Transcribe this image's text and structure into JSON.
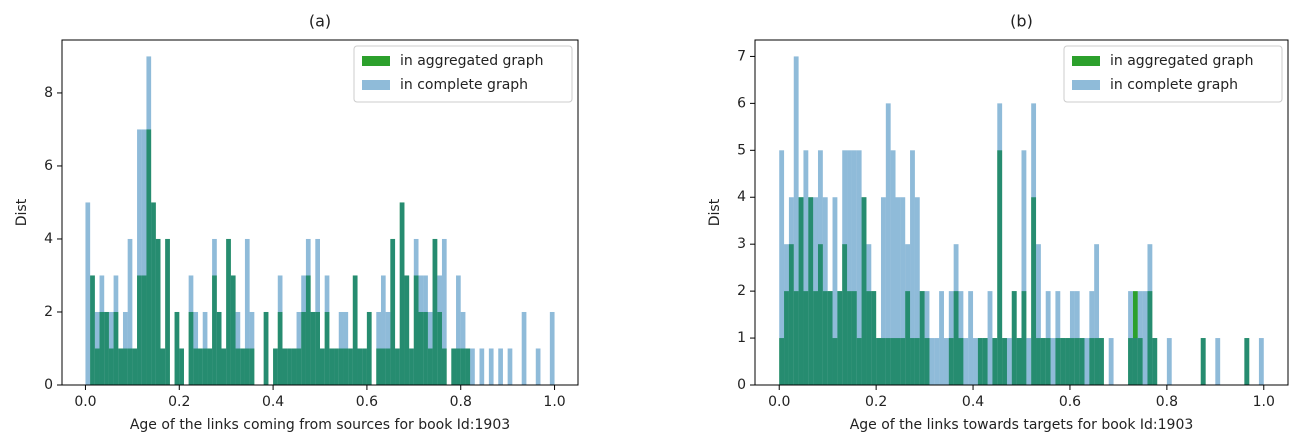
{
  "chart_data": [
    {
      "type": "histogram",
      "title": "(a)",
      "xlabel": "Age of the links coming from sources for book Id:1903",
      "ylabel": "Dist",
      "bins": [
        0,
        0.01,
        0.02,
        0.03,
        0.04,
        0.05,
        0.06,
        0.07,
        0.08,
        0.09,
        0.1,
        0.11,
        0.12,
        0.13,
        0.14,
        0.15,
        0.16,
        0.17,
        0.18,
        0.19,
        0.2,
        0.21,
        0.22,
        0.23,
        0.24,
        0.25,
        0.26,
        0.27,
        0.28,
        0.29,
        0.3,
        0.31,
        0.32,
        0.33,
        0.34,
        0.35,
        0.36,
        0.37,
        0.38,
        0.39,
        0.4,
        0.41,
        0.42,
        0.43,
        0.44,
        0.45,
        0.46,
        0.47,
        0.48,
        0.49,
        0.5,
        0.51,
        0.52,
        0.53,
        0.54,
        0.55,
        0.56,
        0.57,
        0.58,
        0.59,
        0.6,
        0.61,
        0.62,
        0.63,
        0.64,
        0.65,
        0.66,
        0.67,
        0.68,
        0.69,
        0.7,
        0.71,
        0.72,
        0.73,
        0.74,
        0.75,
        0.76,
        0.77,
        0.78,
        0.79,
        0.8,
        0.81,
        0.82,
        0.83,
        0.84,
        0.85,
        0.86,
        0.87,
        0.88,
        0.89,
        0.9,
        0.91,
        0.92,
        0.93,
        0.94,
        0.95,
        0.96,
        0.97,
        0.98,
        0.99,
        1
      ],
      "series": [
        {
          "name": "in aggregated graph",
          "color": "#2ca02c",
          "opacity": 1,
          "values": [
            0,
            3,
            1,
            2,
            2,
            1,
            2,
            1,
            1,
            1,
            1,
            3,
            3,
            7,
            5,
            4,
            1,
            4,
            0,
            2,
            1,
            0,
            2,
            1,
            1,
            1,
            1,
            3,
            2,
            1,
            4,
            3,
            1,
            1,
            1,
            1,
            0,
            0,
            2,
            0,
            1,
            2,
            1,
            1,
            1,
            1,
            2,
            3,
            2,
            2,
            1,
            2,
            1,
            1,
            1,
            1,
            1,
            3,
            1,
            1,
            2,
            0,
            1,
            1,
            1,
            4,
            1,
            5,
            3,
            1,
            3,
            2,
            2,
            1,
            4,
            2,
            1,
            0,
            1,
            1,
            1,
            1,
            0,
            0,
            0,
            0,
            0,
            0,
            0,
            0,
            0,
            0,
            0,
            0,
            0,
            0,
            0,
            0,
            0,
            0
          ]
        },
        {
          "name": "in complete graph",
          "color": "#1f77b4",
          "opacity": 0.5,
          "values": [
            5,
            3,
            2,
            3,
            2,
            2,
            3,
            1,
            2,
            4,
            1,
            7,
            7,
            9,
            5,
            4,
            1,
            4,
            0,
            2,
            1,
            0,
            3,
            2,
            1,
            2,
            1,
            4,
            2,
            1,
            4,
            3,
            2,
            1,
            4,
            2,
            0,
            0,
            2,
            0,
            1,
            3,
            1,
            1,
            1,
            2,
            3,
            4,
            2,
            4,
            1,
            3,
            1,
            1,
            2,
            2,
            1,
            3,
            1,
            1,
            2,
            0,
            2,
            3,
            2,
            4,
            1,
            5,
            3,
            1,
            4,
            3,
            3,
            2,
            4,
            3,
            4,
            0,
            1,
            3,
            2,
            1,
            1,
            0,
            1,
            0,
            1,
            0,
            1,
            0,
            1,
            0,
            0,
            2,
            0,
            0,
            1,
            0,
            0,
            2
          ]
        }
      ],
      "xlim": [
        -0.05,
        1.05
      ],
      "ylim": [
        0,
        9.45
      ],
      "xticks": [
        {
          "value": 0,
          "label": "0.0"
        },
        0.2,
        0.4,
        0.6,
        0.8,
        {
          "value": 1,
          "label": "1.0"
        }
      ],
      "yticks": [
        0,
        2,
        4,
        6,
        8
      ],
      "legend": "upper right"
    },
    {
      "type": "histogram",
      "title": "(b)",
      "xlabel": "Age of the links towards targets for book Id:1903",
      "ylabel": "Dist",
      "bins": [
        0,
        0.01,
        0.02,
        0.03,
        0.04,
        0.05,
        0.06,
        0.07,
        0.08,
        0.09,
        0.1,
        0.11,
        0.12,
        0.13,
        0.14,
        0.15,
        0.16,
        0.17,
        0.18,
        0.19,
        0.2,
        0.21,
        0.22,
        0.23,
        0.24,
        0.25,
        0.26,
        0.27,
        0.28,
        0.29,
        0.3,
        0.31,
        0.32,
        0.33,
        0.34,
        0.35,
        0.36,
        0.37,
        0.38,
        0.39,
        0.4,
        0.41,
        0.42,
        0.43,
        0.44,
        0.45,
        0.46,
        0.47,
        0.48,
        0.49,
        0.5,
        0.51,
        0.52,
        0.53,
        0.54,
        0.55,
        0.56,
        0.57,
        0.58,
        0.59,
        0.6,
        0.61,
        0.62,
        0.63,
        0.64,
        0.65,
        0.66,
        0.67,
        0.68,
        0.69,
        0.7,
        0.71,
        0.72,
        0.73,
        0.74,
        0.75,
        0.76,
        0.77,
        0.78,
        0.79,
        0.8,
        0.81,
        0.82,
        0.83,
        0.84,
        0.85,
        0.86,
        0.87,
        0.88,
        0.89,
        0.9,
        0.91,
        0.92,
        0.93,
        0.94,
        0.95,
        0.96,
        0.97,
        0.98,
        0.99,
        1
      ],
      "series": [
        {
          "name": "in aggregated graph",
          "color": "#2ca02c",
          "opacity": 1,
          "values": [
            1,
            2,
            3,
            2,
            4,
            2,
            4,
            2,
            3,
            2,
            2,
            1,
            2,
            3,
            2,
            2,
            1,
            4,
            2,
            2,
            1,
            1,
            1,
            1,
            1,
            1,
            2,
            1,
            1,
            2,
            1,
            0,
            0,
            0,
            0,
            1,
            2,
            1,
            0,
            0,
            0,
            1,
            1,
            0,
            1,
            5,
            1,
            0,
            2,
            1,
            2,
            0,
            4,
            1,
            1,
            1,
            0,
            1,
            1,
            1,
            1,
            1,
            1,
            0,
            1,
            1,
            1,
            0,
            0,
            0,
            0,
            0,
            1,
            2,
            1,
            0,
            2,
            1,
            0,
            0,
            0,
            0,
            0,
            0,
            0,
            0,
            0,
            1,
            0,
            0,
            0,
            0,
            0,
            0,
            0,
            0,
            1,
            0,
            0,
            0
          ]
        },
        {
          "name": "in complete graph",
          "color": "#1f77b4",
          "opacity": 0.5,
          "values": [
            5,
            3,
            4,
            7,
            4,
            5,
            4,
            4,
            5,
            4,
            2,
            4,
            2,
            5,
            5,
            5,
            5,
            4,
            3,
            2,
            1,
            4,
            6,
            5,
            4,
            4,
            3,
            5,
            4,
            2,
            2,
            1,
            1,
            2,
            1,
            2,
            3,
            2,
            1,
            2,
            1,
            1,
            1,
            2,
            1,
            6,
            1,
            1,
            2,
            1,
            5,
            1,
            6,
            3,
            1,
            2,
            1,
            2,
            1,
            1,
            2,
            2,
            1,
            1,
            2,
            3,
            1,
            0,
            1,
            0,
            0,
            0,
            2,
            1,
            2,
            2,
            3,
            1,
            0,
            0,
            1,
            0,
            0,
            0,
            0,
            0,
            0,
            1,
            0,
            0,
            1,
            0,
            0,
            0,
            0,
            0,
            1,
            0,
            0,
            1
          ]
        }
      ],
      "xlim": [
        -0.05,
        1.05
      ],
      "ylim": [
        0,
        7.35
      ],
      "xticks": [
        {
          "value": 0,
          "label": "0.0"
        },
        0.2,
        0.4,
        0.6,
        0.8,
        {
          "value": 1,
          "label": "1.0"
        }
      ],
      "yticks": [
        0,
        1,
        2,
        3,
        4,
        5,
        6,
        7
      ],
      "legend": "upper right"
    }
  ]
}
